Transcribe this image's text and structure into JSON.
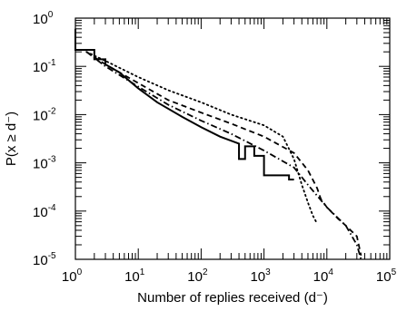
{
  "chart_data": {
    "type": "line",
    "title": "",
    "xlabel": "Number of replies received (d⁻)",
    "ylabel": "P(x ≥ d⁻)",
    "xscale": "log",
    "yscale": "log",
    "xlim": [
      1,
      100000
    ],
    "ylim": [
      1e-05,
      1
    ],
    "grid": false,
    "legend": "none",
    "x_ticks": [
      {
        "base": "10",
        "exp": "0"
      },
      {
        "base": "10",
        "exp": "1"
      },
      {
        "base": "10",
        "exp": "2"
      },
      {
        "base": "10",
        "exp": "3"
      },
      {
        "base": "10",
        "exp": "4"
      },
      {
        "base": "10",
        "exp": "5"
      }
    ],
    "y_ticks": [
      {
        "base": "10",
        "exp": "0"
      },
      {
        "base": "10",
        "exp": "-1"
      },
      {
        "base": "10",
        "exp": "-2"
      },
      {
        "base": "10",
        "exp": "-3"
      },
      {
        "base": "10",
        "exp": "-4"
      },
      {
        "base": "10",
        "exp": "-5"
      }
    ],
    "series": [
      {
        "style": "solid",
        "color": "#000000",
        "step": true,
        "points": [
          [
            1,
            0.6
          ],
          [
            1,
            0.22
          ],
          [
            2,
            0.22
          ],
          [
            2,
            0.14
          ],
          [
            3,
            0.14
          ],
          [
            3,
            0.11
          ],
          [
            5,
            0.075
          ],
          [
            10,
            0.035
          ],
          [
            20,
            0.018
          ],
          [
            50,
            0.009
          ],
          [
            100,
            0.0055
          ],
          [
            200,
            0.0035
          ],
          [
            400,
            0.0025
          ],
          [
            400,
            0.0012
          ],
          [
            500,
            0.0012
          ],
          [
            500,
            0.0022
          ],
          [
            700,
            0.0022
          ],
          [
            700,
            0.0014
          ],
          [
            1000,
            0.0014
          ],
          [
            1000,
            0.00055
          ],
          [
            2500,
            0.00055
          ],
          [
            2500,
            0.00045
          ],
          [
            3000,
            0.00045
          ]
        ]
      },
      {
        "style": "dashed",
        "color": "#000000",
        "points": [
          [
            1.5,
            0.2
          ],
          [
            3,
            0.11
          ],
          [
            10,
            0.045
          ],
          [
            30,
            0.02
          ],
          [
            100,
            0.011
          ],
          [
            300,
            0.0065
          ],
          [
            1000,
            0.0035
          ],
          [
            3000,
            0.0016
          ],
          [
            5000,
            0.0007
          ],
          [
            7000,
            0.0003
          ],
          [
            8000,
            0.00018
          ],
          [
            10000,
            0.00012
          ],
          [
            15000,
            7e-05
          ],
          [
            20000,
            5e-05
          ],
          [
            30000,
            3e-05
          ],
          [
            35000,
            1.2e-05
          ]
        ]
      },
      {
        "style": "dotted",
        "color": "#000000",
        "points": [
          [
            1.5,
            0.2
          ],
          [
            3,
            0.13
          ],
          [
            10,
            0.06
          ],
          [
            30,
            0.032
          ],
          [
            100,
            0.018
          ],
          [
            300,
            0.01
          ],
          [
            1000,
            0.006
          ],
          [
            2000,
            0.0035
          ],
          [
            3000,
            0.0012
          ],
          [
            4000,
            0.00035
          ],
          [
            5000,
            0.00015
          ],
          [
            6000,
            8e-05
          ],
          [
            7000,
            5.5e-05
          ]
        ]
      },
      {
        "style": "dashdot",
        "color": "#000000",
        "points": [
          [
            1.5,
            0.2
          ],
          [
            3,
            0.1
          ],
          [
            10,
            0.038
          ],
          [
            30,
            0.016
          ],
          [
            100,
            0.0075
          ],
          [
            300,
            0.004
          ],
          [
            1000,
            0.0018
          ],
          [
            3000,
            0.0008
          ],
          [
            5000,
            0.00035
          ],
          [
            10000,
            0.00012
          ],
          [
            20000,
            5e-05
          ],
          [
            30000,
            2e-05
          ],
          [
            35000,
            1e-05
          ]
        ]
      }
    ]
  }
}
